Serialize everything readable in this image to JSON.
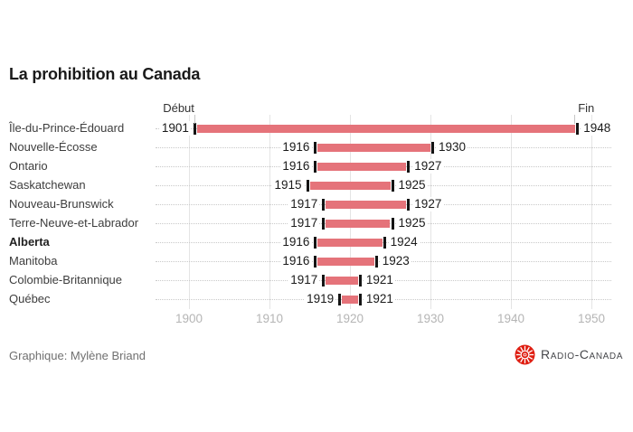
{
  "title": "La prohibition au Canada",
  "chart_data": {
    "type": "bar",
    "variant": "range-gantt",
    "title": "La prohibition au Canada",
    "start_label": "Début",
    "end_label": "Fin",
    "bar_color": "#e5737a",
    "x_ticks": [
      1900,
      1910,
      1920,
      1930,
      1940,
      1950
    ],
    "xlim": [
      1896,
      1952
    ],
    "grid": true,
    "rows": [
      {
        "label": "Île-du-Prince-Édouard",
        "start": 1901,
        "end": 1948,
        "bold": false
      },
      {
        "label": "Nouvelle-Écosse",
        "start": 1916,
        "end": 1930,
        "bold": false
      },
      {
        "label": "Ontario",
        "start": 1916,
        "end": 1927,
        "bold": false
      },
      {
        "label": "Saskatchewan",
        "start": 1915,
        "end": 1925,
        "bold": false
      },
      {
        "label": "Nouveau-Brunswick",
        "start": 1917,
        "end": 1927,
        "bold": false
      },
      {
        "label": "Terre-Neuve-et-Labrador",
        "start": 1917,
        "end": 1925,
        "bold": false
      },
      {
        "label": "Alberta",
        "start": 1916,
        "end": 1924,
        "bold": true
      },
      {
        "label": "Manitoba",
        "start": 1916,
        "end": 1923,
        "bold": false
      },
      {
        "label": "Colombie-Britannique",
        "start": 1917,
        "end": 1921,
        "bold": false
      },
      {
        "label": "Québec",
        "start": 1919,
        "end": 1921,
        "bold": false
      }
    ]
  },
  "footer": {
    "credit": "Graphique: Mylène Briand",
    "brand": "Radio-Canada",
    "brand_red": "#df1e12"
  }
}
